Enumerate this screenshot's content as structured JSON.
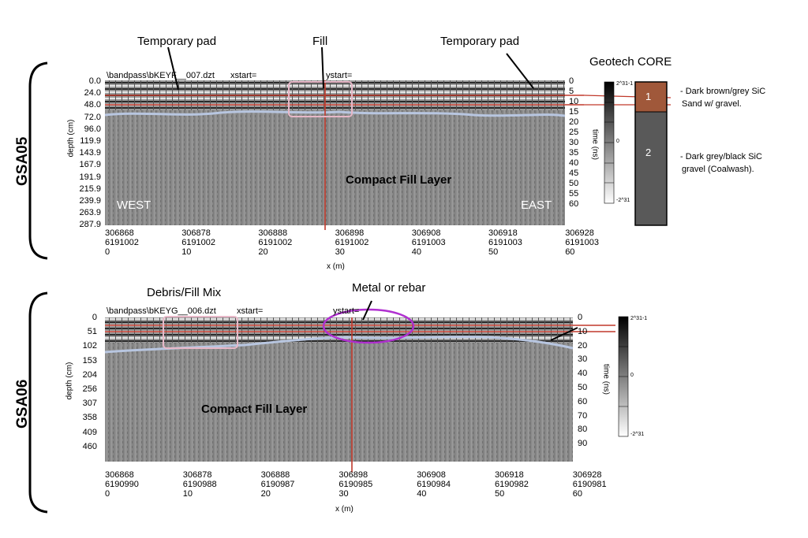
{
  "panels": [
    {
      "id": "gsa05",
      "label": "GSA05",
      "file_line": "\\bandpass\\bKEYF__007.dzt",
      "xstart_label": "xstart=",
      "ystart_label": "ystart=",
      "depth_label": "depth (cm)",
      "time_label": "time (ns)",
      "x_label": "x (m)",
      "depth_ticks": [
        "0.0",
        "24.0",
        "48.0",
        "72.0",
        "96.0",
        "119.9",
        "143.9",
        "167.9",
        "191.9",
        "215.9",
        "239.9",
        "263.9",
        "287.9"
      ],
      "time_ticks": [
        "0",
        "5",
        "10",
        "15",
        "20",
        "25",
        "30",
        "35",
        "40",
        "45",
        "50",
        "55",
        "60"
      ],
      "x_ticks": [
        {
          "e": "306868",
          "n": "6191002",
          "m": "0"
        },
        {
          "e": "306878",
          "n": "6191002",
          "m": "10"
        },
        {
          "e": "306888",
          "n": "6191002",
          "m": "20"
        },
        {
          "e": "306898",
          "n": "6191002",
          "m": "30"
        },
        {
          "e": "306908",
          "n": "6191003",
          "m": "40"
        },
        {
          "e": "306918",
          "n": "6191003",
          "m": "50"
        },
        {
          "e": "306928",
          "n": "6191003",
          "m": "60"
        }
      ],
      "annotations": {
        "temporary_pad_left": "Temporary pad",
        "fill": "Fill",
        "temporary_pad_right": "Temporary pad",
        "west": "WEST",
        "east": "EAST",
        "layer": "Compact Fill Layer"
      },
      "colorbar": {
        "top": "2^31-1",
        "mid": "0",
        "bottom": "-2^31"
      }
    },
    {
      "id": "gsa06",
      "label": "GSA06",
      "file_line": "\\bandpass\\bKEYG__006.dzt",
      "xstart_label": "xstart=",
      "ystart_label": "ystart=",
      "depth_label": "depth (cm)",
      "time_label": "time (ns)",
      "x_label": "x (m)",
      "depth_ticks": [
        "0",
        "51",
        "102",
        "153",
        "204",
        "256",
        "307",
        "358",
        "409",
        "460"
      ],
      "time_ticks": [
        "0",
        "10",
        "20",
        "30",
        "40",
        "50",
        "60",
        "70",
        "80",
        "90"
      ],
      "x_ticks": [
        {
          "e": "306868",
          "n": "6190990",
          "m": "0"
        },
        {
          "e": "306878",
          "n": "6190988",
          "m": "10"
        },
        {
          "e": "306888",
          "n": "6190987",
          "m": "20"
        },
        {
          "e": "306898",
          "n": "6190985",
          "m": "30"
        },
        {
          "e": "306908",
          "n": "6190984",
          "m": "40"
        },
        {
          "e": "306918",
          "n": "6190982",
          "m": "50"
        },
        {
          "e": "306928",
          "n": "6190981",
          "m": "60"
        }
      ],
      "annotations": {
        "debris": "Debris/Fill Mix",
        "metal": "Metal or rebar",
        "layer": "Compact Fill Layer"
      },
      "colorbar": {
        "top": "2^31-1",
        "mid": "0",
        "bottom": "-2^31"
      }
    }
  ],
  "core": {
    "title": "Geotech CORE",
    "layer1_num": "1",
    "layer2_num": "2",
    "layer1_desc_l1": "- Dark brown/grey SiC",
    "layer1_desc_l2": "Sand w/ gravel.",
    "layer2_desc_l1": "- Dark grey/black SiC",
    "layer2_desc_l2": "gravel (Coalwash).",
    "layer1_color": "#a0583a",
    "layer2_color": "#595959"
  },
  "colors": {
    "radargram_bg": "#8a8a8a",
    "interface_line": "#b8c6e0",
    "red_line": "#c0392b",
    "fill_box": "#e8b8c8",
    "metal_ellipse": "#b030d0"
  }
}
